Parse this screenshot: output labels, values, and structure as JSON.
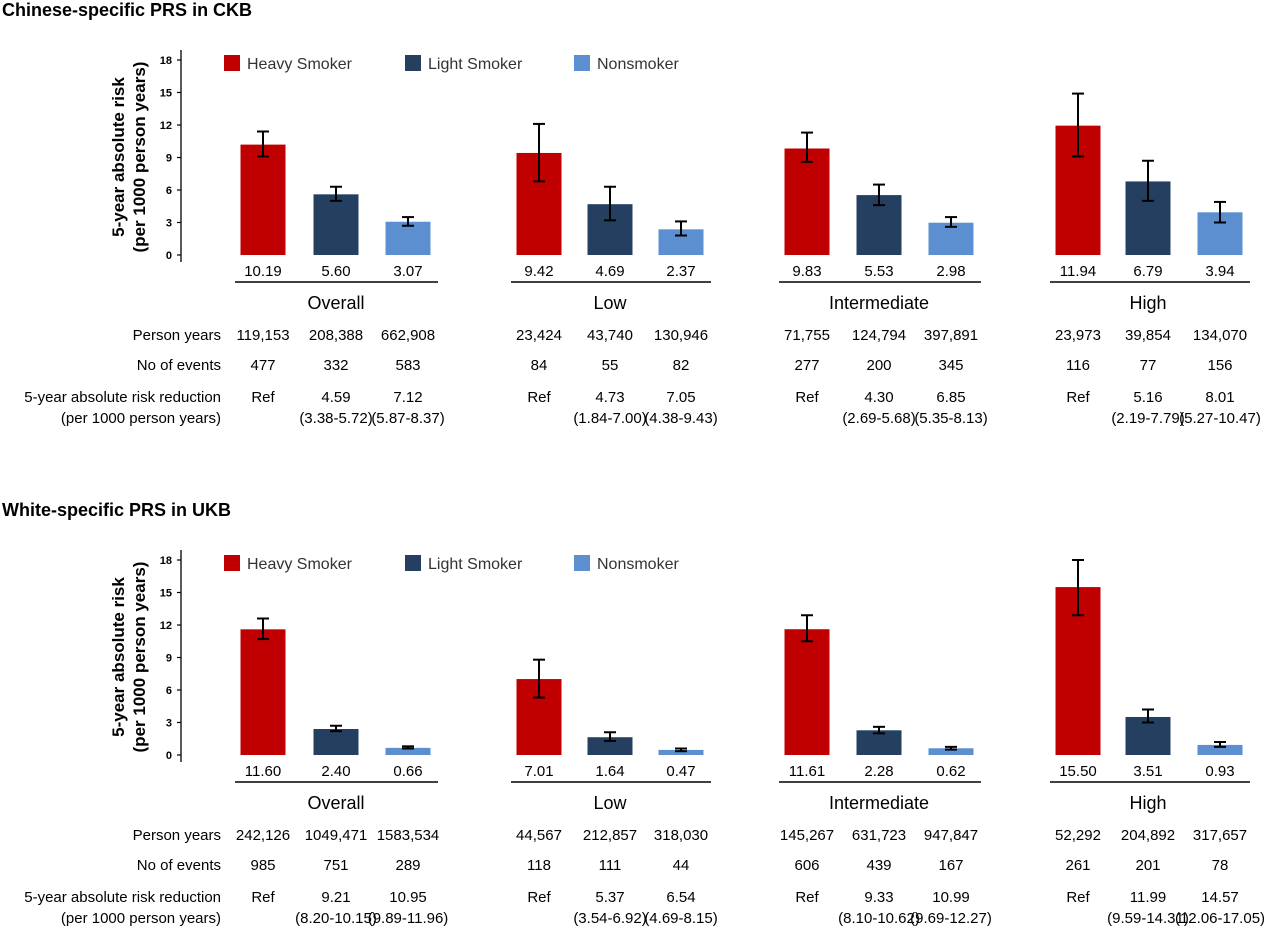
{
  "panels": [
    {
      "title": "Chinese-specific PRS in CKB",
      "chart_data": {
        "type": "bar",
        "ylabel": "5-year absolute risk (per 1000 person years)",
        "ylim": [
          0,
          18
        ],
        "yticks": [
          0,
          3,
          6,
          9,
          12,
          15,
          18
        ],
        "legend": {
          "placement": "top-left",
          "entries": [
            "Heavy Smoker",
            "Light Smoker",
            "Nonsmoker"
          ]
        },
        "colors": [
          "#c00000",
          "#243f60",
          "#5b8fd0"
        ],
        "groups": [
          {
            "label": "Overall",
            "values": [
              10.19,
              5.6,
              3.07
            ],
            "value_labels": [
              "10.19",
              "5.60",
              "3.07"
            ],
            "ci": [
              [
                9.1,
                11.4
              ],
              [
                5.0,
                6.3
              ],
              [
                2.7,
                3.5
              ]
            ]
          },
          {
            "label": "Low",
            "values": [
              9.42,
              4.69,
              2.37
            ],
            "value_labels": [
              "9.42",
              "4.69",
              "2.37"
            ],
            "ci": [
              [
                6.8,
                12.1
              ],
              [
                3.2,
                6.3
              ],
              [
                1.8,
                3.1
              ]
            ]
          },
          {
            "label": "Intermediate",
            "values": [
              9.83,
              5.53,
              2.98
            ],
            "value_labels": [
              "9.83",
              "5.53",
              "2.98"
            ],
            "ci": [
              [
                8.6,
                11.3
              ],
              [
                4.6,
                6.5
              ],
              [
                2.6,
                3.5
              ]
            ]
          },
          {
            "label": "High",
            "values": [
              11.94,
              6.79,
              3.94
            ],
            "value_labels": [
              "11.94",
              "6.79",
              "3.94"
            ],
            "ci": [
              [
                9.1,
                14.9
              ],
              [
                5.0,
                8.7
              ],
              [
                3.0,
                4.9
              ]
            ]
          }
        ]
      },
      "table": {
        "rows": [
          {
            "label": "Person years",
            "groups": [
              [
                "119,153",
                "208,388",
                "662,908"
              ],
              [
                "23,424",
                "43,740",
                "130,946"
              ],
              [
                "71,755",
                "124,794",
                "397,891"
              ],
              [
                "23,973",
                "39,854",
                "134,070"
              ]
            ]
          },
          {
            "label": "No of events",
            "groups": [
              [
                "477",
                "332",
                "583"
              ],
              [
                "84",
                "55",
                "82"
              ],
              [
                "277",
                "200",
                "345"
              ],
              [
                "116",
                "77",
                "156"
              ]
            ]
          },
          {
            "label": "5-year absolute risk reduction",
            "label2": "(per 1000 person years)",
            "groups": [
              [
                "Ref",
                "4.59",
                "7.12"
              ],
              [
                "Ref",
                "4.73",
                "7.05"
              ],
              [
                "Ref",
                "4.30",
                "6.85"
              ],
              [
                "Ref",
                "5.16",
                "8.01"
              ]
            ],
            "groups2": [
              [
                "",
                "(3.38-5.72)",
                "(5.87-8.37)"
              ],
              [
                "",
                "(1.84-7.00)",
                "(4.38-9.43)"
              ],
              [
                "",
                "(2.69-5.68)",
                "(5.35-8.13)"
              ],
              [
                "",
                "(2.19-7.79)",
                "(5.27-10.47)"
              ]
            ]
          }
        ]
      }
    },
    {
      "title": "White-specific PRS in UKB",
      "chart_data": {
        "type": "bar",
        "ylabel": "5-year absolute risk (per 1000 person years)",
        "ylim": [
          0,
          18
        ],
        "yticks": [
          0,
          3,
          6,
          9,
          12,
          15,
          18
        ],
        "legend": {
          "placement": "top-left",
          "entries": [
            "Heavy Smoker",
            "Light Smoker",
            "Nonsmoker"
          ]
        },
        "colors": [
          "#c00000",
          "#243f60",
          "#5b8fd0"
        ],
        "groups": [
          {
            "label": "Overall",
            "values": [
              11.6,
              2.4,
              0.66
            ],
            "value_labels": [
              "11.60",
              "2.40",
              "0.66"
            ],
            "ci": [
              [
                10.7,
                12.6
              ],
              [
                2.2,
                2.7
              ],
              [
                0.6,
                0.8
              ]
            ]
          },
          {
            "label": "Low",
            "values": [
              7.01,
              1.64,
              0.47
            ],
            "value_labels": [
              "7.01",
              "1.64",
              "0.47"
            ],
            "ci": [
              [
                5.3,
                8.8
              ],
              [
                1.3,
                2.1
              ],
              [
                0.35,
                0.6
              ]
            ]
          },
          {
            "label": "Intermediate",
            "values": [
              11.61,
              2.28,
              0.62
            ],
            "value_labels": [
              "11.61",
              "2.28",
              "0.62"
            ],
            "ci": [
              [
                10.5,
                12.9
              ],
              [
                2.0,
                2.6
              ],
              [
                0.5,
                0.75
              ]
            ]
          },
          {
            "label": "High",
            "values": [
              15.5,
              3.51,
              0.93
            ],
            "value_labels": [
              "15.50",
              "3.51",
              "0.93"
            ],
            "ci": [
              [
                12.9,
                18.0
              ],
              [
                3.0,
                4.2
              ],
              [
                0.75,
                1.2
              ]
            ]
          }
        ]
      },
      "table": {
        "rows": [
          {
            "label": "Person years",
            "groups": [
              [
                "242,126",
                "1049,471",
                "1583,534"
              ],
              [
                "44,567",
                "212,857",
                "318,030"
              ],
              [
                "145,267",
                "631,723",
                "947,847"
              ],
              [
                "52,292",
                "204,892",
                "317,657"
              ]
            ]
          },
          {
            "label": "No of events",
            "groups": [
              [
                "985",
                "751",
                "289"
              ],
              [
                "118",
                "111",
                "44"
              ],
              [
                "606",
                "439",
                "167"
              ],
              [
                "261",
                "201",
                "78"
              ]
            ]
          },
          {
            "label": "5-year absolute risk reduction",
            "label2": "(per 1000 person years)",
            "groups": [
              [
                "Ref",
                "9.21",
                "10.95"
              ],
              [
                "Ref",
                "5.37",
                "6.54"
              ],
              [
                "Ref",
                "9.33",
                "10.99"
              ],
              [
                "Ref",
                "11.99",
                "14.57"
              ]
            ],
            "groups2": [
              [
                "",
                "(8.20-10.15)",
                "(9.89-11.96)"
              ],
              [
                "",
                "(3.54-6.92)",
                "(4.69-8.15)"
              ],
              [
                "",
                "(8.10-10.62)",
                "(9.69-12.27)"
              ],
              [
                "",
                "(9.59-14.31)",
                "(12.06-17.05)"
              ]
            ]
          }
        ]
      }
    }
  ]
}
